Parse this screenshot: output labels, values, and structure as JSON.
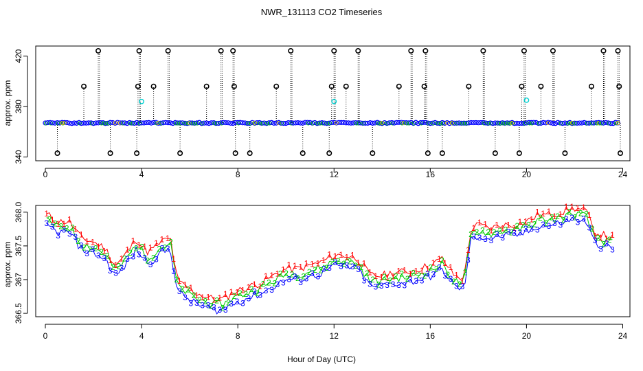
{
  "chart_data": [
    {
      "type": "scatter",
      "title": "NWR_131113  CO2 Timeseries",
      "xlabel": "",
      "ylabel": "approx. ppm",
      "xlim": [
        -0.4,
        24.3
      ],
      "ylim": [
        337,
        428
      ],
      "x_ticks": [
        0,
        4,
        8,
        12,
        16,
        20,
        24
      ],
      "x_tick_labels": [
        "0",
        "4",
        "8",
        "12",
        "16",
        "20",
        "24"
      ],
      "y_ticks": [
        340,
        380,
        420
      ],
      "y_tick_labels": [
        "340",
        "380",
        "420"
      ],
      "baseline": 367,
      "high_outliers": [
        2.2,
        3.9,
        5.1,
        7.3,
        7.8,
        10.2,
        12.0,
        13.0,
        15.2,
        15.8,
        18.2,
        19.9,
        21.1,
        23.2,
        23.8
      ],
      "mid_outliers": [
        1.6,
        3.85,
        4.5,
        6.7,
        7.85,
        9.6,
        11.9,
        12.5,
        14.7,
        15.75,
        17.6,
        19.8,
        20.6,
        22.7,
        23.85
      ],
      "low_outliers": [
        0.5,
        2.7,
        3.8,
        5.6,
        7.9,
        8.5,
        10.7,
        11.8,
        13.6,
        15.9,
        16.5,
        18.7,
        19.7,
        21.6,
        23.9
      ],
      "cyan_points": [
        {
          "x": 4.0,
          "y": 384
        },
        {
          "x": 12.0,
          "y": 384
        },
        {
          "x": 20.0,
          "y": 385
        }
      ]
    },
    {
      "type": "line",
      "title": "",
      "xlabel": "Hour of Day (UTC)",
      "ylabel": "approx. ppm",
      "xlim": [
        -0.4,
        24.3
      ],
      "ylim": [
        366.45,
        368.1
      ],
      "x_ticks": [
        0,
        4,
        8,
        12,
        16,
        20,
        24
      ],
      "x_tick_labels": [
        "0",
        "4",
        "8",
        "12",
        "16",
        "20",
        "24"
      ],
      "y_ticks": [
        366.5,
        367.0,
        367.5,
        368.0
      ],
      "y_tick_labels": [
        "366.5",
        "367",
        "367.5",
        "368.0"
      ],
      "series": [
        {
          "name": "1",
          "color": "#ff0000"
        },
        {
          "name": "2",
          "color": "#00cc00"
        },
        {
          "name": "3",
          "color": "#0000ff"
        }
      ],
      "x": [
        0.1,
        0.5,
        1.0,
        1.5,
        2.0,
        2.5,
        2.9,
        3.2,
        3.5,
        3.8,
        4.2,
        4.5,
        4.8,
        5.2,
        5.5,
        5.8,
        6.2,
        6.6,
        7.0,
        7.4,
        7.8,
        8.2,
        8.6,
        9.0,
        9.5,
        10.0,
        10.5,
        11.0,
        11.5,
        12.0,
        12.5,
        13.0,
        13.5,
        14.0,
        14.5,
        15.0,
        15.5,
        16.0,
        16.5,
        17.0,
        17.4,
        17.7,
        18.0,
        18.5,
        19.0,
        19.5,
        20.0,
        20.5,
        21.0,
        21.5,
        22.0,
        22.5,
        22.8,
        23.2,
        23.6
      ],
      "y": [
        367.85,
        367.75,
        367.75,
        367.5,
        367.45,
        367.35,
        367.1,
        367.2,
        367.35,
        367.5,
        367.3,
        367.35,
        367.45,
        367.5,
        366.85,
        366.8,
        366.7,
        366.65,
        366.6,
        366.6,
        366.7,
        366.75,
        366.8,
        366.85,
        366.95,
        367.05,
        367.05,
        367.1,
        367.15,
        367.25,
        367.25,
        367.2,
        366.95,
        366.95,
        367.0,
        367.0,
        367.05,
        367.1,
        367.2,
        366.95,
        366.9,
        367.65,
        367.7,
        367.65,
        367.7,
        367.7,
        367.75,
        367.85,
        367.85,
        367.9,
        367.95,
        367.9,
        367.6,
        367.55,
        367.5
      ]
    }
  ]
}
